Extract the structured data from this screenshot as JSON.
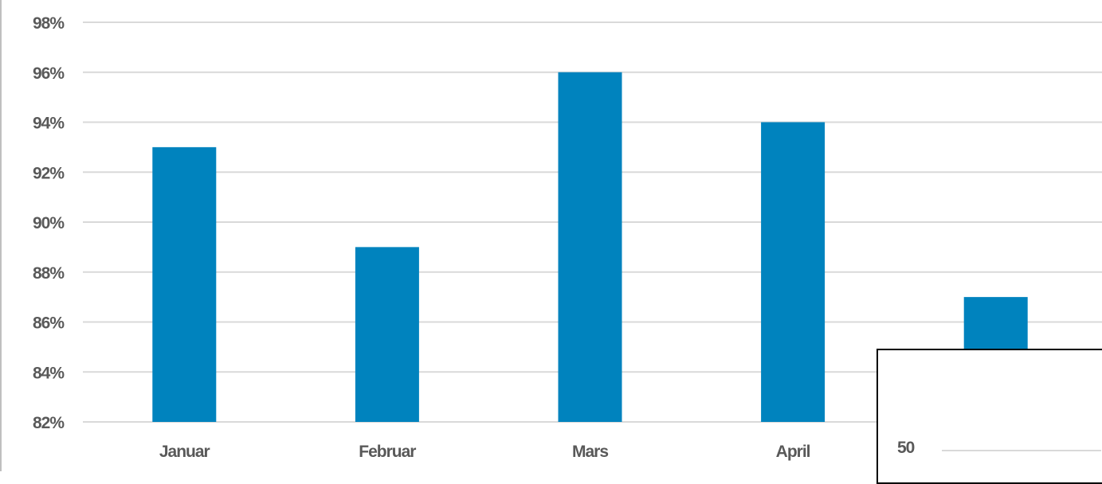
{
  "chart_data": {
    "type": "bar",
    "categories": [
      "Januar",
      "Februar",
      "Mars",
      "April",
      ""
    ],
    "values": [
      93,
      89,
      96,
      94,
      87
    ],
    "value_unit": "%",
    "ylim": [
      82,
      98
    ],
    "y_ticks": [
      "82%",
      "84%",
      "86%",
      "88%",
      "90%",
      "92%",
      "94%",
      "96%",
      "98%"
    ],
    "grid": true,
    "bar_color": "#0083be",
    "grid_color": "#d9d9d9",
    "label_color": "#595959"
  },
  "overlay": {
    "tick_label": "50"
  }
}
